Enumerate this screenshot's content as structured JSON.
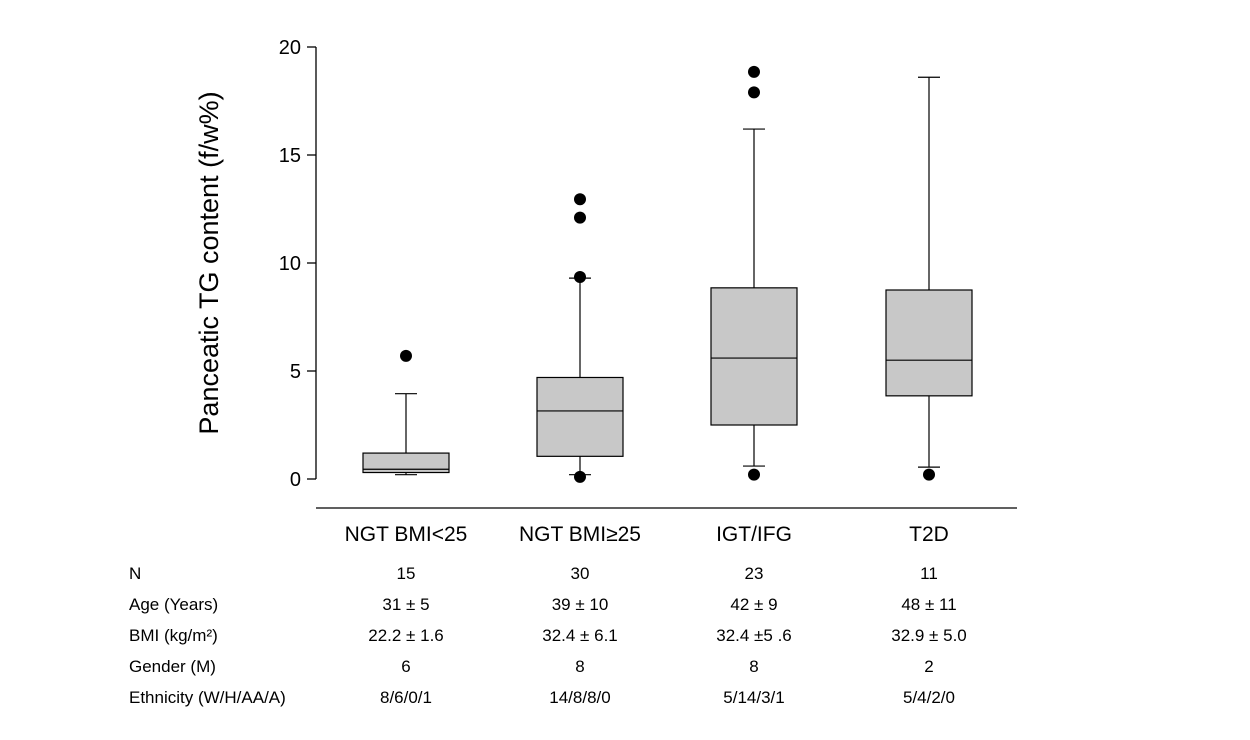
{
  "chart_data": {
    "type": "box",
    "title": "",
    "xlabel": "",
    "ylabel": "Panceatic TG content (f/w%)",
    "ylim": [
      0,
      20
    ],
    "yticks": [
      "0",
      "5",
      "10",
      "15",
      "20"
    ],
    "grid": false,
    "box_color": "#c8c8c8",
    "categories": [
      "NGT BMI<25",
      "NGT BMI≥25",
      "IGT/IFG",
      "T2D"
    ],
    "boxes": [
      {
        "whisker_low": 0.2,
        "q1": 0.3,
        "median": 0.45,
        "q3": 1.2,
        "whisker_high": 3.95,
        "outliers": [
          5.7
        ]
      },
      {
        "whisker_low": 0.2,
        "q1": 1.05,
        "median": 3.15,
        "q3": 4.7,
        "whisker_high": 9.3,
        "outliers": [
          0.1,
          9.35,
          12.1,
          12.95
        ]
      },
      {
        "whisker_low": 0.6,
        "q1": 2.5,
        "median": 5.6,
        "q3": 8.85,
        "whisker_high": 16.2,
        "outliers": [
          0.2,
          17.9,
          18.85
        ]
      },
      {
        "whisker_low": 0.55,
        "q1": 3.85,
        "median": 5.5,
        "q3": 8.75,
        "whisker_high": 18.6,
        "outliers": [
          0.2
        ]
      }
    ]
  },
  "table": {
    "rows": [
      {
        "label": "N",
        "values": [
          "15",
          "30",
          "23",
          "11"
        ]
      },
      {
        "label": "Age (Years)",
        "values": [
          "31 ± 5",
          "39 ± 10",
          "42 ± 9",
          "48 ± 11"
        ]
      },
      {
        "label": "BMI (kg/m²)",
        "values": [
          "22.2 ± 1.6",
          "32.4 ± 6.1",
          "32.4 ±5 .6",
          "32.9 ± 5.0"
        ]
      },
      {
        "label": "Gender (M)",
        "values": [
          "6",
          "8",
          "8",
          "2"
        ]
      },
      {
        "label": "Ethnicity (W/H/AA/A)",
        "values": [
          "8/6/0/1",
          "14/8/8/0",
          "5/14/3/1",
          "5/4/2/0"
        ]
      }
    ]
  }
}
